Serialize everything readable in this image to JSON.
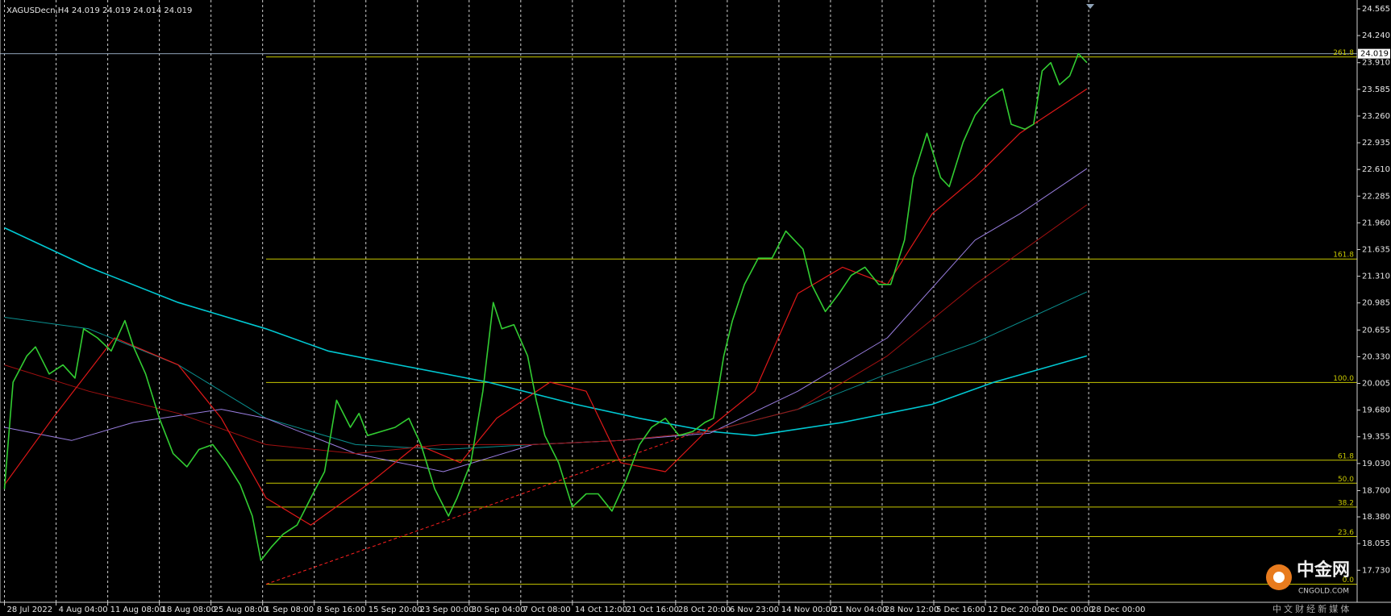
{
  "chart_data": {
    "type": "line",
    "title": "XAGUSDecn,H4  24.019 24.019 24.014 24.019",
    "xlim": [
      -2.6,
      786
    ],
    "ylim": [
      17.34,
      24.673
    ],
    "grid": true,
    "xticks": [
      {
        "value": 0,
        "label": "28 Jul 2022"
      },
      {
        "value": 30,
        "label": "4 Aug 04:00"
      },
      {
        "value": 60,
        "label": "11 Aug 08:00"
      },
      {
        "value": 90,
        "label": "18 Aug 08:00"
      },
      {
        "value": 120,
        "label": "25 Aug 08:00"
      },
      {
        "value": 150,
        "label": "1 Sep 08:00"
      },
      {
        "value": 180,
        "label": "8 Sep 16:00"
      },
      {
        "value": 210,
        "label": "15 Sep 20:00"
      },
      {
        "value": 240,
        "label": "23 Sep 00:00"
      },
      {
        "value": 270,
        "label": "30 Sep 04:00"
      },
      {
        "value": 300,
        "label": "7 Oct 08:00"
      },
      {
        "value": 330,
        "label": "14 Oct 12:00"
      },
      {
        "value": 360,
        "label": "21 Oct 16:00"
      },
      {
        "value": 390,
        "label": "28 Oct 20:00"
      },
      {
        "value": 420,
        "label": "6 Nov 23:00"
      },
      {
        "value": 450,
        "label": "14 Nov 00:00"
      },
      {
        "value": 480,
        "label": "21 Nov 04:00"
      },
      {
        "value": 510,
        "label": "28 Nov 12:00"
      },
      {
        "value": 540,
        "label": "5 Dec 16:00"
      },
      {
        "value": 570,
        "label": "12 Dec 20:00"
      },
      {
        "value": 600,
        "label": "20 Dec 00:00"
      },
      {
        "value": 630,
        "label": "28 Dec 00:00"
      }
    ],
    "yticks": [
      24.565,
      {
        "value": 24.24,
        "label": "24.240"
      },
      {
        "value": 23.91,
        "label": "23.910"
      },
      23.585,
      {
        "value": 23.26,
        "label": "23.260"
      },
      22.935,
      {
        "value": 22.61,
        "label": "22.610"
      },
      22.285,
      {
        "value": 21.96,
        "label": "21.960"
      },
      21.635,
      {
        "value": 21.31,
        "label": "21.310"
      },
      20.985,
      20.655,
      {
        "value": 20.33,
        "label": "20.330"
      },
      20.005,
      {
        "value": 19.68,
        "label": "19.680"
      },
      19.355,
      {
        "value": 19.03,
        "label": "19.030"
      },
      {
        "value": 18.7,
        "label": "18.700"
      },
      {
        "value": 18.38,
        "label": "18.380"
      },
      18.055,
      {
        "value": 17.73,
        "label": "17.730"
      }
    ],
    "current_price": 24.019,
    "price_line_color": "#8fa3b8",
    "fib_start_x": 152,
    "fib_color": "#c8c800",
    "fib_levels": [
      {
        "label": "261.8",
        "value": 23.98
      },
      {
        "label": "161.8",
        "value": 21.52
      },
      {
        "label": "100.0",
        "value": 20.016
      },
      {
        "label": "61.8",
        "value": 19.07
      },
      {
        "label": "50.0",
        "value": 18.79
      },
      {
        "label": "38.2",
        "value": 18.5
      },
      {
        "label": "23.6",
        "value": 18.14
      },
      {
        "label": "0.0",
        "value": 17.56
      }
    ],
    "trendline": {
      "color": "#ff2020",
      "x": [
        152,
        410
      ],
      "values": [
        17.56,
        19.47
      ]
    },
    "series": [
      {
        "color": "#00c8d2",
        "width": 1.6,
        "x": [
          0,
          49,
          101,
          152,
          188,
          229,
          281,
          332,
          369,
          410,
          436,
          487,
          539,
          575,
          629
        ],
        "values": [
          21.9,
          21.42,
          20.99,
          20.67,
          20.4,
          20.23,
          20.02,
          19.75,
          19.58,
          19.42,
          19.37,
          19.53,
          19.75,
          20.02,
          20.34
        ]
      },
      {
        "color": "#0a8f8f",
        "width": 1,
        "x": [
          0,
          49,
          101,
          152,
          204,
          255,
          307,
          358,
          410,
          461,
          513,
          564,
          629
        ],
        "values": [
          20.81,
          20.67,
          20.23,
          19.58,
          19.26,
          19.2,
          19.26,
          19.31,
          19.42,
          19.69,
          20.12,
          20.5,
          21.12
        ]
      },
      {
        "color": "#9a7ee0",
        "width": 1,
        "x": [
          0,
          39,
          75,
          126,
          152,
          204,
          255,
          307,
          358,
          410,
          461,
          513,
          564,
          590,
          629
        ],
        "values": [
          19.47,
          19.31,
          19.53,
          19.69,
          19.58,
          19.15,
          18.93,
          19.26,
          19.31,
          19.4,
          19.91,
          20.56,
          21.75,
          22.07,
          22.62
        ]
      },
      {
        "color": "#a01010",
        "width": 1,
        "x": [
          0,
          49,
          101,
          152,
          204,
          255,
          307,
          358,
          410,
          461,
          513,
          564,
          629
        ],
        "values": [
          20.23,
          19.91,
          19.64,
          19.26,
          19.15,
          19.26,
          19.26,
          19.31,
          19.42,
          19.69,
          20.34,
          21.21,
          22.18
        ]
      },
      {
        "color": "#e01818",
        "width": 1.2,
        "x": [
          0,
          28,
          64,
          101,
          126,
          152,
          178,
          214,
          240,
          265,
          286,
          317,
          338,
          358,
          384,
          410,
          436,
          461,
          487,
          513,
          539,
          564,
          590,
          629
        ],
        "values": [
          18.77,
          19.58,
          20.56,
          20.23,
          19.58,
          18.61,
          18.28,
          18.82,
          19.26,
          19.04,
          19.58,
          20.02,
          19.91,
          19.04,
          18.93,
          19.47,
          19.91,
          21.1,
          21.42,
          21.21,
          22.07,
          22.51,
          23.05,
          23.59
        ]
      },
      {
        "color": "#32cd32",
        "width": 1.6,
        "x": [
          0,
          5,
          13,
          18,
          26,
          34,
          41,
          46,
          54,
          62,
          70,
          75,
          82,
          90,
          98,
          106,
          113,
          121,
          129,
          137,
          144,
          149,
          155,
          162,
          170,
          178,
          186,
          193,
          201,
          206,
          211,
          219,
          227,
          235,
          242,
          250,
          258,
          263,
          271,
          278,
          284,
          289,
          296,
          304,
          309,
          314,
          322,
          330,
          338,
          345,
          353,
          361,
          369,
          376,
          384,
          392,
          400,
          407,
          412,
          418,
          423,
          430,
          438,
          446,
          454,
          459,
          464,
          469,
          477,
          485,
          492,
          500,
          508,
          515,
          523,
          528,
          536,
          544,
          549,
          557,
          564,
          572,
          580,
          585,
          593,
          598,
          603,
          608,
          613,
          619,
          624,
          629
        ],
        "values": [
          18.72,
          20.02,
          20.34,
          20.45,
          20.12,
          20.23,
          20.07,
          20.67,
          20.56,
          20.4,
          20.77,
          20.45,
          20.12,
          19.58,
          19.15,
          18.99,
          19.2,
          19.26,
          19.04,
          18.77,
          18.39,
          17.85,
          18.01,
          18.17,
          18.28,
          18.61,
          18.93,
          19.8,
          19.47,
          19.64,
          19.37,
          19.42,
          19.47,
          19.58,
          19.26,
          18.72,
          18.39,
          18.61,
          19.04,
          19.91,
          20.99,
          20.67,
          20.72,
          20.34,
          19.8,
          19.37,
          19.04,
          18.5,
          18.66,
          18.66,
          18.45,
          18.82,
          19.26,
          19.47,
          19.58,
          19.37,
          19.42,
          19.53,
          19.58,
          20.34,
          20.77,
          21.21,
          21.53,
          21.53,
          21.86,
          21.75,
          21.64,
          21.21,
          20.88,
          21.1,
          21.32,
          21.42,
          21.21,
          21.21,
          21.75,
          22.51,
          23.05,
          22.51,
          22.4,
          22.94,
          23.27,
          23.48,
          23.59,
          23.16,
          23.1,
          23.16,
          23.81,
          23.91,
          23.64,
          23.75,
          24.02,
          23.91
        ]
      }
    ]
  },
  "watermark": {
    "name": "中金网",
    "site": "CNGOLD.COM",
    "slogan": "中 文 财 经 新 媒 体"
  }
}
